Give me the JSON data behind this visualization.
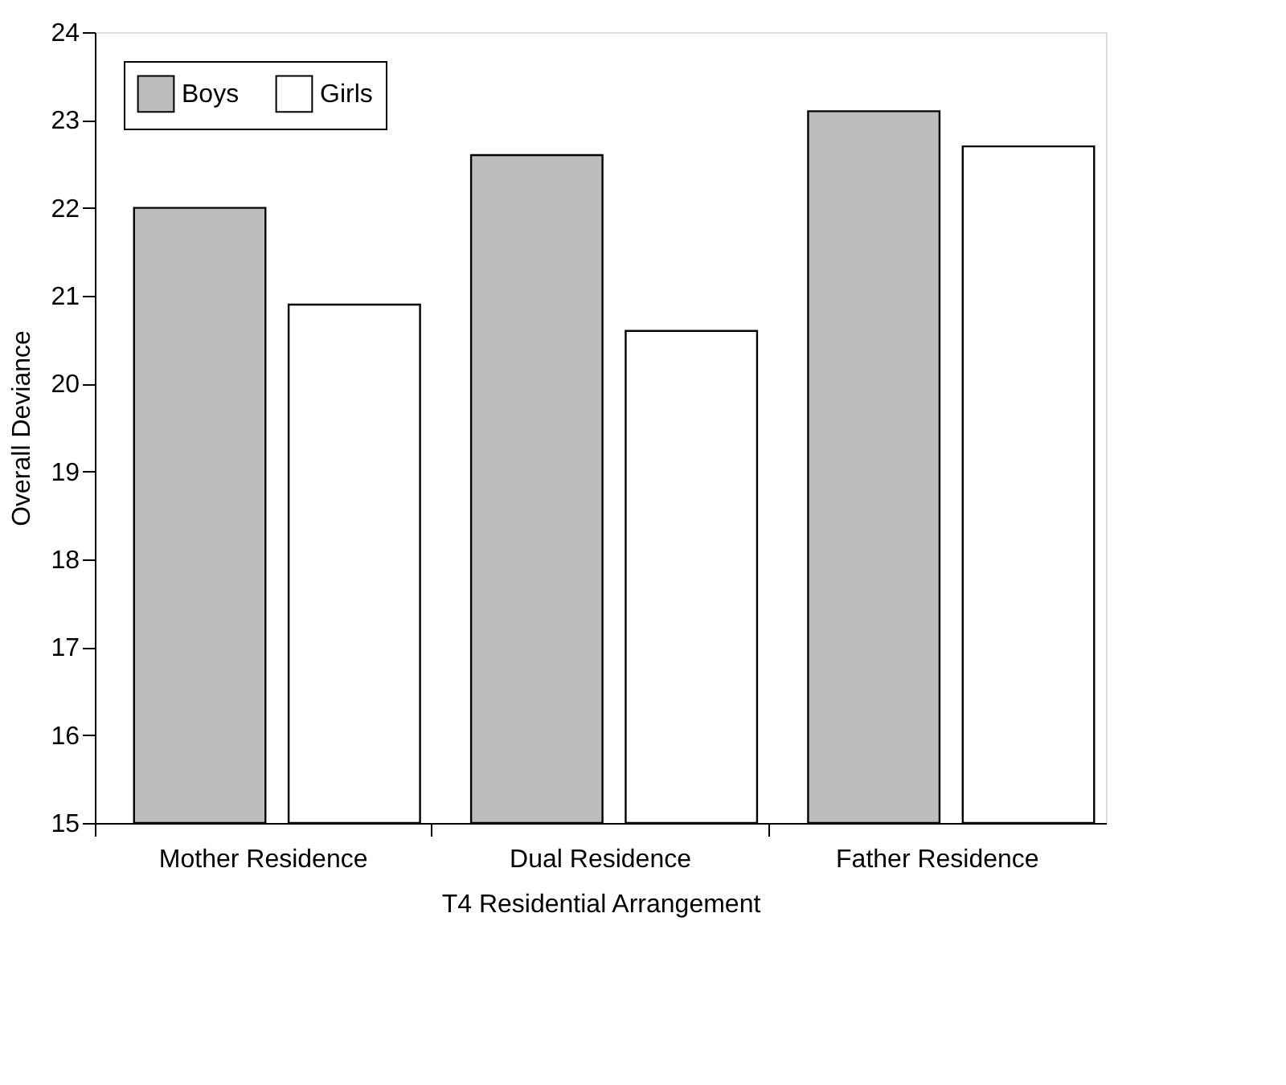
{
  "chart_data": {
    "type": "bar",
    "xlabel": "T4 Residential Arrangement",
    "ylabel": "Overall Deviance",
    "categories": [
      "Mother Residence",
      "Dual Residence",
      "Father Residence"
    ],
    "series": [
      {
        "name": "Boys",
        "color": "#bdbdbd",
        "values": [
          22.0,
          22.6,
          23.1
        ]
      },
      {
        "name": "Girls",
        "color": "#ffffff",
        "values": [
          20.9,
          20.6,
          22.7
        ]
      }
    ],
    "ylim": [
      15,
      24
    ],
    "yticks": [
      15,
      16,
      17,
      18,
      19,
      20,
      21,
      22,
      23,
      24
    ],
    "grid": false,
    "legend": "top left"
  }
}
